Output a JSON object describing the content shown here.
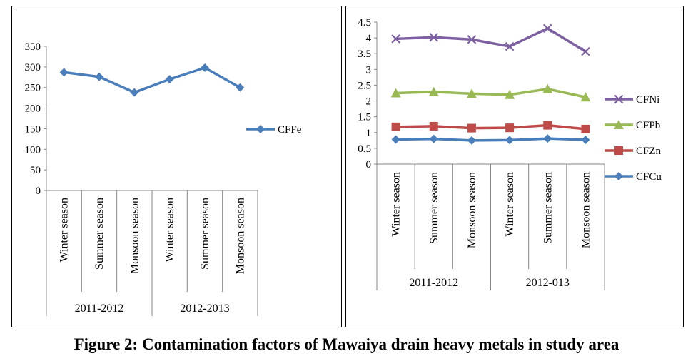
{
  "caption": "Figure 2: Contamination factors of Mawaiya drain heavy metals in study area",
  "chart_data": [
    {
      "type": "line",
      "categories": [
        "Winter season",
        "Summer season",
        "Monsoon season",
        "Winter season",
        "Summer season",
        "Monsoon season"
      ],
      "groups": [
        {
          "label": "2011-2012",
          "span": 3
        },
        {
          "label": "2012-2013",
          "span": 3
        }
      ],
      "ylim": [
        0,
        350
      ],
      "yticks": [
        0,
        50,
        100,
        150,
        200,
        250,
        300,
        350
      ],
      "grid": false,
      "legend_position": "right",
      "series": [
        {
          "name": "CFFe",
          "values": [
            287,
            276,
            238,
            270,
            298,
            250
          ],
          "color": "#4a7ebb",
          "marker": "diamond"
        }
      ]
    },
    {
      "type": "line",
      "categories": [
        "Winter season",
        "Summer season",
        "Monsoon season",
        "Winter season",
        "Summer season",
        "Monsoon season"
      ],
      "groups": [
        {
          "label": "2011-2012",
          "span": 3
        },
        {
          "label": "2012-013",
          "span": 3
        }
      ],
      "ylim": [
        0,
        4.5
      ],
      "yticks": [
        "0",
        "0.5",
        "1",
        "1.5",
        "2",
        "2.5",
        "3",
        "3.5",
        "4",
        "4.5"
      ],
      "grid": false,
      "legend_position": "right",
      "series": [
        {
          "name": "CFNi",
          "values": [
            3.97,
            4.02,
            3.95,
            3.73,
            4.3,
            3.57
          ],
          "color": "#7d60a0",
          "marker": "x"
        },
        {
          "name": "CFPb",
          "values": [
            2.25,
            2.29,
            2.23,
            2.2,
            2.38,
            2.12
          ],
          "color": "#98b954",
          "marker": "triangle"
        },
        {
          "name": "CFZn",
          "values": [
            1.18,
            1.2,
            1.14,
            1.15,
            1.23,
            1.11
          ],
          "color": "#be4b48",
          "marker": "square"
        },
        {
          "name": "CFCu",
          "values": [
            0.78,
            0.8,
            0.75,
            0.76,
            0.81,
            0.77
          ],
          "color": "#4a7ebb",
          "marker": "diamond"
        }
      ]
    }
  ]
}
